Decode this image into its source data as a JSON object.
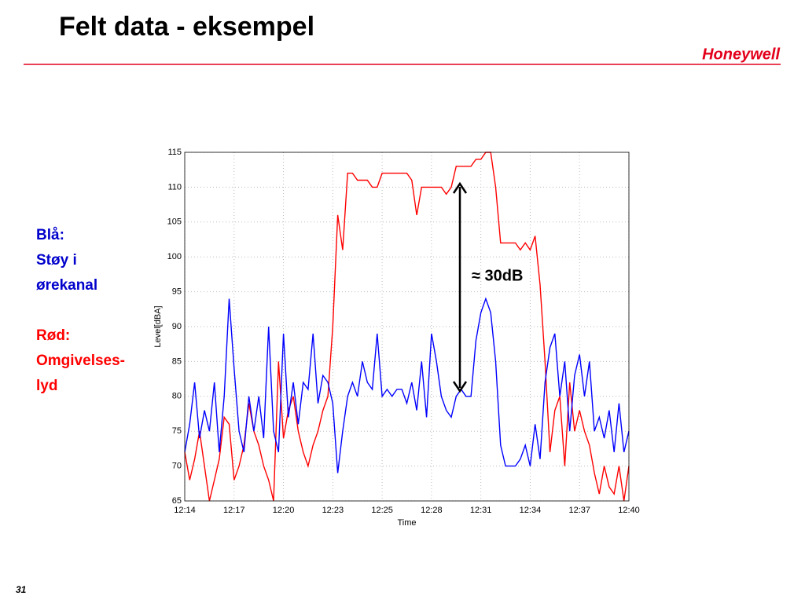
{
  "slide": {
    "title": "Felt data - eksempel",
    "logo": "Honeywell",
    "page_number": "31",
    "notes": [
      {
        "lines": [
          "Blå:",
          "Støy i",
          "ørekanal"
        ],
        "color": "#0000cc"
      },
      {
        "lines": [
          "Rød:",
          "Omgivelses-",
          "lyd"
        ],
        "color": "#ff0000"
      }
    ]
  },
  "chart_data": {
    "type": "line",
    "x_label": "Time",
    "y_label": "Level[dBA]",
    "annotation": "≈ 30dB",
    "grid": true,
    "categories": [
      "12:14",
      null,
      null,
      null,
      null,
      null,
      null,
      null,
      null,
      null,
      "12:17",
      null,
      null,
      null,
      null,
      null,
      null,
      null,
      null,
      null,
      "12:20",
      null,
      null,
      null,
      null,
      null,
      null,
      null,
      null,
      null,
      "12:23",
      null,
      null,
      null,
      null,
      null,
      null,
      null,
      null,
      null,
      "12:25",
      null,
      null,
      null,
      null,
      null,
      null,
      null,
      null,
      null,
      "12:28",
      null,
      null,
      null,
      null,
      null,
      null,
      null,
      null,
      null,
      "12:31",
      null,
      null,
      null,
      null,
      null,
      null,
      null,
      null,
      null,
      "12:34",
      null,
      null,
      null,
      null,
      null,
      null,
      null,
      null,
      null,
      "12:37",
      null,
      null,
      null,
      null,
      null,
      null,
      null,
      null,
      null,
      "12:40"
    ],
    "ylim": [
      65,
      115
    ],
    "yticks": [
      65,
      70,
      75,
      80,
      85,
      90,
      95,
      100,
      105,
      110,
      115
    ],
    "series": [
      {
        "color": "#ff0000",
        "values": [
          72,
          68,
          71,
          75,
          70,
          65,
          68,
          71,
          77,
          76,
          68,
          70,
          73,
          79,
          75,
          73,
          70,
          68,
          65,
          85,
          74,
          78,
          80,
          75,
          72,
          70,
          73,
          75,
          78,
          80,
          90,
          106,
          101,
          112,
          112,
          111,
          111,
          111,
          110,
          110,
          112,
          112,
          112,
          112,
          112,
          112,
          111,
          106,
          110,
          110,
          110,
          110,
          110,
          109,
          110,
          113,
          113,
          113,
          113,
          114,
          114,
          115,
          115,
          110,
          102,
          102,
          102,
          102,
          101,
          102,
          101,
          103,
          96,
          85,
          72,
          78,
          80,
          70,
          82,
          75,
          78,
          75,
          73,
          69,
          66,
          70,
          67,
          66,
          70,
          65,
          70
        ]
      },
      {
        "color": "#0000ff",
        "values": [
          72,
          76,
          82,
          74,
          78,
          75,
          82,
          72,
          80,
          94,
          84,
          75,
          72,
          80,
          75,
          80,
          74,
          90,
          75,
          72,
          89,
          77,
          82,
          76,
          82,
          81,
          89,
          79,
          83,
          82,
          79,
          69,
          75,
          80,
          82,
          80,
          85,
          82,
          81,
          89,
          80,
          81,
          80,
          81,
          81,
          79,
          82,
          78,
          85,
          77,
          89,
          85,
          80,
          78,
          77,
          80,
          81,
          80,
          80,
          88,
          92,
          94,
          92,
          85,
          73,
          70,
          70,
          70,
          71,
          73,
          70,
          76,
          71,
          82,
          87,
          89,
          80,
          85,
          75,
          83,
          86,
          80,
          85,
          75,
          77,
          74,
          78,
          72,
          79,
          72,
          75
        ]
      }
    ]
  }
}
